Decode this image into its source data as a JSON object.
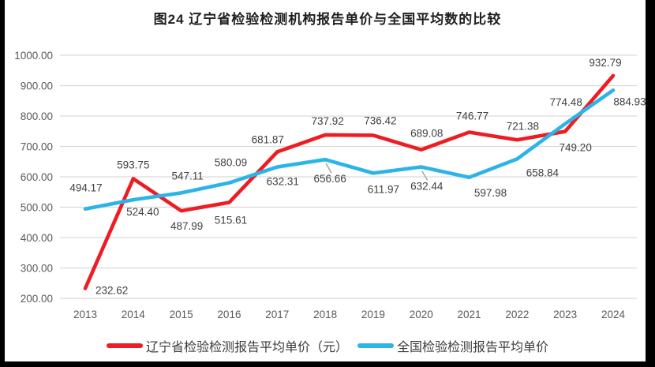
{
  "frame": {
    "background": "#ffffff",
    "border_color": "#000000"
  },
  "chart_data": {
    "type": "line",
    "title": "图24 辽宁省检验检测机构报告单价与全国平均数的比较",
    "categories": [
      "2013",
      "2014",
      "2015",
      "2016",
      "2017",
      "2018",
      "2019",
      "2020",
      "2021",
      "2022",
      "2023",
      "2024"
    ],
    "series": [
      {
        "name": "辽宁省检验检测报告平均单价（元）",
        "color": "#ee1c23",
        "values": [
          232.62,
          593.75,
          487.99,
          515.61,
          681.87,
          737.92,
          736.42,
          689.08,
          746.77,
          721.38,
          749.2,
          932.79
        ],
        "label_offsets": [
          [
            13,
            7,
            "start"
          ],
          [
            0,
            -13,
            "middle"
          ],
          [
            7,
            24,
            "middle"
          ],
          [
            2,
            27,
            "middle"
          ],
          [
            -12,
            -11,
            "middle"
          ],
          [
            3,
            -13,
            "middle"
          ],
          [
            9,
            -14,
            "middle"
          ],
          [
            7,
            -16,
            "middle"
          ],
          [
            4,
            -16,
            "middle"
          ],
          [
            7,
            -13,
            "middle"
          ],
          [
            13,
            25,
            "middle"
          ],
          [
            -10,
            -12,
            "middle"
          ]
        ],
        "leader_points": []
      },
      {
        "name": "全国检验检测报告平均单价",
        "color": "#2cb4e8",
        "values": [
          494.17,
          524.4,
          547.11,
          580.09,
          632.31,
          656.66,
          611.97,
          632.44,
          597.98,
          658.84,
          774.48,
          884.93
        ],
        "label_offsets": [
          [
            1,
            -22,
            "middle"
          ],
          [
            12,
            20,
            "middle"
          ],
          [
            8,
            -17,
            "middle"
          ],
          [
            2,
            -21,
            "middle"
          ],
          [
            7,
            23,
            "middle"
          ],
          [
            6,
            29,
            "middle"
          ],
          [
            13,
            25,
            "middle"
          ],
          [
            7,
            29,
            "middle"
          ],
          [
            27,
            24,
            "middle"
          ],
          [
            32,
            22,
            "middle"
          ],
          [
            1,
            -23,
            "middle"
          ],
          [
            21,
            19,
            "middle"
          ]
        ],
        "leader_points": [
          5,
          7
        ]
      }
    ],
    "ylim": [
      200,
      1000
    ],
    "y_step": 100,
    "y_tick_decimals": 2,
    "y_tick_labels": [
      "200.00",
      "300.00",
      "400.00",
      "500.00",
      "600.00",
      "700.00",
      "800.00",
      "900.00",
      "1000.00"
    ],
    "grid": true,
    "gridline_color": "#d9d9d9",
    "leader_color": "#a6a6a6",
    "data_label_color": "#404040",
    "tick_label_color": "#595959",
    "legend_position": "bottom"
  }
}
